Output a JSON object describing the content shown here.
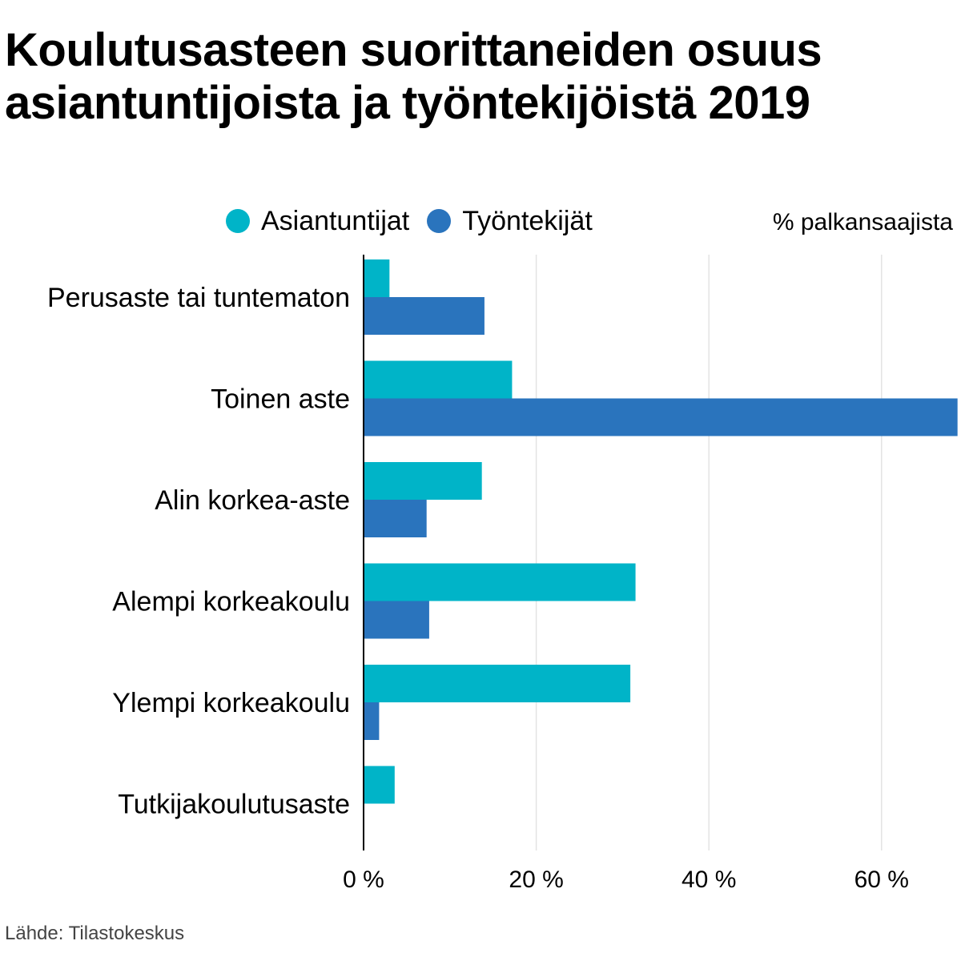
{
  "title": "Koulutusasteen suorittaneiden osuus asiantuntijoista ja työntekijöistä 2019",
  "unit_label": "% palkansaajista",
  "source": "Lähde: Tilastokeskus",
  "colors": {
    "asiantuntijat": "#00b4c8",
    "tyontekijat": "#2a74bd",
    "grid": "#e3e3e3",
    "axis": "#000000"
  },
  "chart_data": {
    "type": "bar",
    "orientation": "horizontal",
    "categories": [
      "Perusaste tai tuntematon",
      "Toinen aste",
      "Alin korkea-aste",
      "Alempi korkeakoulu",
      "Ylempi korkeakoulu",
      "Tutkijakoulutusaste"
    ],
    "series": [
      {
        "name": "Asiantuntijat",
        "values": [
          3.0,
          17.2,
          13.7,
          31.5,
          30.9,
          3.6
        ]
      },
      {
        "name": "Työntekijät",
        "values": [
          14.0,
          68.8,
          7.3,
          7.6,
          1.8,
          0.0
        ]
      }
    ],
    "x_ticks": [
      0,
      20,
      40,
      60
    ],
    "x_tick_labels": [
      "0 %",
      "20 %",
      "40 %",
      "60 %"
    ],
    "xlim": [
      0,
      69
    ],
    "xlabel": "% palkansaajista",
    "ylabel": "",
    "grid": true,
    "legend": "top"
  }
}
